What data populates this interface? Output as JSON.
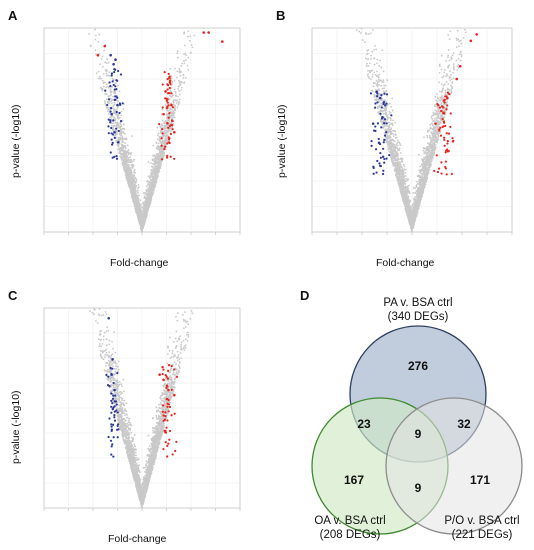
{
  "panels": {
    "A": "A",
    "B": "B",
    "C": "C",
    "D": "D"
  },
  "colors": {
    "down": "#2b3a9a",
    "up": "#e8231d",
    "ns": "#c9c9c9",
    "pa_fill": "#b6c4d6",
    "pa_stroke": "#2d3f63",
    "oa_fill": "#cfe8c4",
    "oa_stroke": "#3f8a2e",
    "po_fill": "#e3e3e3",
    "po_stroke": "#8c8c8c"
  },
  "chart_data": [
    {
      "panel": "A",
      "type": "scatter",
      "xlabel": "Fold-change",
      "ylabel": "p-value (-log10)",
      "xlim": [
        -1.0,
        1.0
      ],
      "ylim": [
        0,
        4.5
      ],
      "grid": true,
      "series": [
        {
          "group": "down",
          "x": [
            -0.32,
            -0.29,
            -0.27,
            -0.31,
            -0.25,
            -0.28
          ],
          "y": [
            3.9,
            3.7,
            3.8,
            2.6,
            2.8,
            2.2
          ]
        },
        {
          "group": "up",
          "x": [
            0.22,
            0.26,
            0.3,
            0.24,
            0.28,
            0.33
          ],
          "y": [
            2.6,
            2.4,
            2.8,
            3.1,
            3.4,
            2.2
          ]
        },
        {
          "group": "outliers",
          "x": [
            0.63,
            0.68,
            0.82,
            -0.45,
            -0.38
          ],
          "y": [
            4.4,
            4.4,
            4.2,
            3.9,
            4.1
          ]
        }
      ]
    },
    {
      "panel": "B",
      "type": "scatter",
      "xlabel": "Fold-change",
      "ylabel": "p-value (-log10)",
      "xlim": [
        -0.85,
        0.85
      ],
      "ylim": [
        0.8,
        4.0
      ],
      "grid": true,
      "series": [
        {
          "group": "down",
          "x": [
            -0.3,
            -0.27,
            -0.25,
            -0.33,
            -0.28
          ],
          "y": [
            3.0,
            2.9,
            2.6,
            2.5,
            2.2
          ]
        },
        {
          "group": "up",
          "x": [
            0.2,
            0.25,
            0.3,
            0.38,
            0.41,
            0.5,
            0.55
          ],
          "y": [
            2.5,
            2.7,
            2.9,
            3.2,
            3.4,
            3.8,
            3.9
          ]
        }
      ]
    },
    {
      "panel": "C",
      "type": "scatter",
      "xlabel": "Fold-change",
      "ylabel": "p-value (-log10)",
      "xlim": [
        -1.0,
        1.0
      ],
      "ylim": [
        0.4,
        4.3
      ],
      "grid": true,
      "series": [
        {
          "group": "down",
          "x": [
            -0.34,
            -0.3,
            -0.31,
            -0.28
          ],
          "y": [
            4.1,
            3.3,
            3.0,
            2.7
          ]
        },
        {
          "group": "up",
          "x": [
            0.18,
            0.22,
            0.27,
            0.33
          ],
          "y": [
            3.0,
            2.9,
            2.7,
            2.6
          ]
        }
      ]
    },
    {
      "panel": "D",
      "type": "venn",
      "sets": [
        {
          "name": "PA v. BSA ctrl",
          "sub": "(340 DEGs)",
          "only": 276
        },
        {
          "name": "OA v. BSA ctrl",
          "sub": "(208 DEGs)",
          "only": 167
        },
        {
          "name": "P/O v. BSA ctrl",
          "sub": "(221 DEGs)",
          "only": 171
        }
      ],
      "overlaps": {
        "pa_oa": 23,
        "pa_po": 32,
        "oa_po": 9,
        "all": 9
      }
    }
  ]
}
